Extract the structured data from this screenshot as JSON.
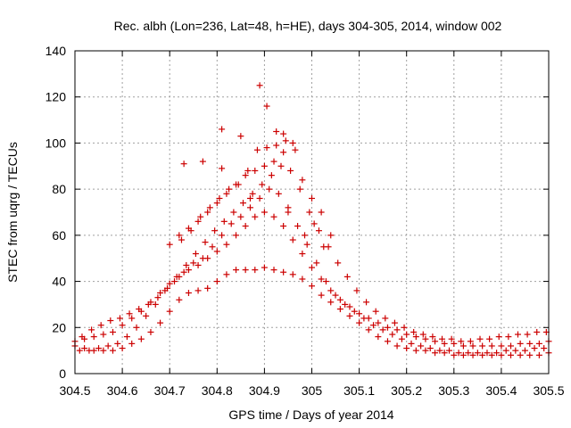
{
  "chart_data": {
    "type": "scatter",
    "title": "Rec. albh (Lon=236, Lat=48, h=HE), days 304-305, 2014, window 002",
    "xlabel": "GPS time / Days of year 2014",
    "ylabel": "STEC from uqrg / TECUs",
    "xlim": [
      304.5,
      305.5
    ],
    "ylim": [
      0,
      140
    ],
    "xticks": [
      "304.5",
      "304.6",
      "304.7",
      "304.8",
      "304.9",
      "305",
      "305.1",
      "305.2",
      "305.3",
      "305.4",
      "305.5"
    ],
    "yticks": [
      "0",
      "20",
      "40",
      "60",
      "80",
      "100",
      "120",
      "140"
    ],
    "grid": true,
    "marker": "plus",
    "color": "#cc0000",
    "series": [
      {
        "x": [
          304.5,
          304.52,
          304.54,
          304.56,
          304.58,
          304.6,
          304.62,
          304.64,
          304.66,
          304.68,
          304.7,
          304.72,
          304.74,
          304.76,
          304.78,
          304.8,
          304.82,
          304.84,
          304.86,
          304.88,
          304.9,
          304.92,
          304.94,
          304.96,
          304.98,
          305.0,
          305.02,
          305.04,
          305.06,
          305.08,
          305.1,
          305.12,
          305.14,
          305.16,
          305.18,
          305.2,
          305.22,
          305.24,
          305.26,
          305.28,
          305.3,
          305.32,
          305.34,
          305.36,
          305.38,
          305.4,
          305.42,
          305.44,
          305.46,
          305.48,
          305.5,
          304.5,
          304.52,
          304.54,
          304.56,
          304.58,
          304.6,
          304.62,
          304.64,
          304.66,
          304.68,
          304.7,
          304.72,
          304.74,
          304.76,
          304.78,
          304.8,
          304.82,
          304.84,
          304.86,
          304.88,
          304.9,
          304.92,
          304.94,
          304.96,
          304.98,
          305.0,
          305.02,
          305.04,
          305.06,
          305.08,
          305.1,
          305.12,
          305.14,
          305.16,
          305.18,
          305.2,
          305.22,
          305.24,
          305.26,
          305.28,
          305.3,
          305.32,
          305.34,
          305.36,
          305.38,
          305.4,
          305.42,
          305.44,
          305.46,
          305.48,
          305.5,
          304.51,
          304.53,
          304.55,
          304.57,
          304.59,
          304.61,
          304.63,
          304.65,
          304.67,
          304.69,
          304.71,
          304.73,
          304.75,
          304.77,
          304.79,
          304.81,
          304.83,
          304.85,
          304.87,
          304.89,
          304.91,
          304.93,
          304.95,
          304.97,
          304.99,
          305.01,
          305.03,
          305.05,
          305.07,
          305.09,
          305.11,
          305.13,
          305.15,
          305.17,
          305.19,
          305.21,
          305.23,
          305.25,
          305.27,
          305.29,
          305.31,
          305.33,
          305.35,
          305.37,
          305.39,
          305.41,
          305.43,
          305.45,
          305.47,
          305.49,
          304.515,
          304.535,
          304.555,
          304.575,
          304.595,
          304.615,
          304.635,
          304.655,
          304.675,
          304.695,
          304.715,
          304.735,
          304.755,
          304.775,
          304.795,
          304.815,
          304.835,
          304.855,
          304.875,
          304.895,
          304.915,
          304.935,
          304.955,
          304.975,
          304.995,
          305.015,
          305.035,
          305.055,
          305.075,
          305.095,
          305.115,
          305.135,
          305.155,
          305.175,
          305.195,
          305.215,
          305.235,
          305.255,
          305.275,
          305.295,
          305.315,
          305.335,
          305.355,
          305.375,
          305.395,
          305.415,
          305.435,
          305.455,
          305.475,
          305.495,
          304.7,
          304.72,
          304.74,
          304.76,
          304.78,
          304.8,
          304.82,
          304.84,
          304.86,
          304.88,
          304.9,
          304.92,
          304.94,
          304.96,
          304.98,
          305.0,
          305.02,
          305.04,
          304.725,
          304.745,
          304.765,
          304.785,
          304.805,
          304.825,
          304.845,
          304.865,
          304.885,
          304.905,
          304.925,
          304.945,
          304.965,
          304.985,
          305.005,
          305.025,
          304.73,
          304.77,
          304.81,
          304.85,
          304.89,
          304.905,
          304.925,
          304.94,
          304.81,
          304.87,
          304.95
        ],
        "y": [
          12,
          11,
          10,
          10,
          10,
          11,
          13,
          15,
          18,
          22,
          27,
          32,
          35,
          36,
          37,
          40,
          43,
          45,
          45,
          45,
          46,
          45,
          44,
          43,
          41,
          38,
          34,
          31,
          28,
          25,
          22,
          19,
          16,
          14,
          12,
          11,
          10,
          10,
          9,
          9,
          8,
          8,
          8,
          8,
          8,
          8,
          8,
          8,
          8,
          8,
          9,
          14,
          15,
          16,
          17,
          18,
          21,
          24,
          27,
          31,
          35,
          39,
          42,
          45,
          47,
          50,
          53,
          56,
          60,
          64,
          68,
          70,
          68,
          64,
          58,
          52,
          46,
          41,
          36,
          32,
          29,
          26,
          24,
          22,
          20,
          19,
          17,
          16,
          15,
          14,
          13,
          13,
          12,
          12,
          12,
          12,
          12,
          12,
          13,
          13,
          13,
          14,
          10,
          10,
          11,
          12,
          13,
          16,
          20,
          25,
          30,
          36,
          40,
          44,
          48,
          50,
          55,
          60,
          65,
          68,
          72,
          76,
          80,
          78,
          72,
          64,
          56,
          48,
          40,
          34,
          30,
          27,
          24,
          21,
          19,
          17,
          15,
          13,
          12,
          11,
          10,
          10,
          9,
          9,
          9,
          9,
          9,
          10,
          10,
          10,
          11,
          11,
          16,
          19,
          21,
          23,
          24,
          26,
          28,
          30,
          33,
          37,
          42,
          47,
          52,
          57,
          62,
          66,
          70,
          74,
          78,
          82,
          86,
          90,
          88,
          80,
          70,
          62,
          55,
          48,
          42,
          36,
          31,
          27,
          24,
          22,
          20,
          18,
          17,
          16,
          15,
          15,
          14,
          14,
          15,
          15,
          16,
          16,
          17,
          17,
          18,
          18,
          56,
          60,
          63,
          66,
          70,
          74,
          78,
          82,
          86,
          88,
          90,
          92,
          96,
          100,
          84,
          76,
          70,
          60,
          58,
          62,
          68,
          72,
          76,
          80,
          82,
          88,
          97,
          98,
          99,
          101,
          97,
          60,
          65,
          55,
          91,
          92,
          106,
          103,
          125,
          116,
          105,
          104,
          89,
          76,
          70
        ]
      }
    ]
  }
}
